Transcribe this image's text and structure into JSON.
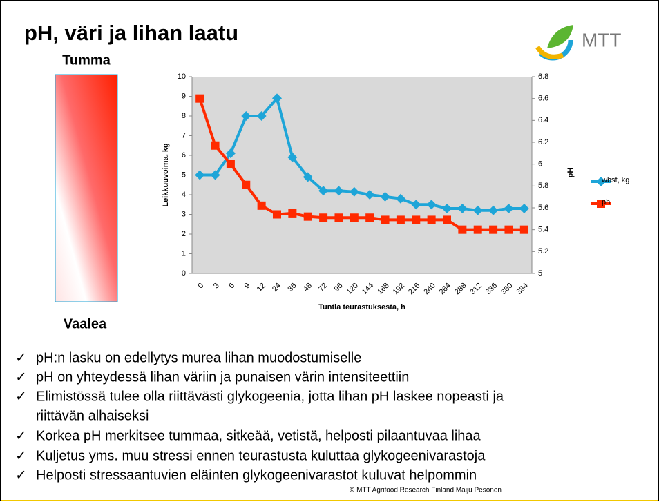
{
  "header": {
    "title": "pH, väri ja lihan laatu",
    "logo": "MTT"
  },
  "scale_labels": {
    "top": "Tumma",
    "bottom": "Vaalea"
  },
  "chart_data": {
    "type": "line",
    "xlabel": "Tuntia teurastuksesta, h",
    "ylabel": "Leikkuuvoima, kg",
    "y2label": "pH",
    "categories": [
      "0",
      "3",
      "6",
      "9",
      "12",
      "24",
      "36",
      "48",
      "72",
      "96",
      "120",
      "144",
      "168",
      "192",
      "216",
      "240",
      "264",
      "288",
      "312",
      "336",
      "360",
      "384"
    ],
    "series": [
      {
        "name": "wbsf, kg",
        "color": "#1ea5d8",
        "marker": "diamond",
        "values": [
          5,
          5,
          6.1,
          8,
          8,
          8.9,
          5.9,
          4.9,
          4.2,
          4.2,
          4.15,
          4.0,
          3.9,
          3.8,
          3.5,
          3.5,
          3.3,
          3.3,
          3.2,
          3.2,
          3.3,
          3.3
        ]
      },
      {
        "name": "ph",
        "color": "#ff2a00",
        "marker": "square",
        "axis": "y2",
        "values": [
          6.6,
          6.17,
          6.0,
          5.81,
          5.62,
          5.54,
          5.55,
          5.52,
          5.51,
          5.51,
          5.51,
          5.51,
          5.49,
          5.49,
          5.49,
          5.49,
          5.49,
          5.4,
          5.4,
          5.4,
          5.4,
          5.4
        ]
      }
    ],
    "ylim": [
      0,
      10
    ],
    "yticks": [
      0,
      1,
      2,
      3,
      4,
      5,
      6,
      7,
      8,
      9,
      10
    ],
    "y2lim": [
      5,
      6.8
    ],
    "y2ticks": [
      5,
      5.2,
      5.4,
      5.6,
      5.8,
      6,
      6.2,
      6.4,
      6.6,
      6.8
    ],
    "grid": false,
    "legend": "right"
  },
  "bullets": [
    "pH:n lasku on edellytys murea lihan muodostumiselle",
    "pH on yhteydessä lihan väriin ja punaisen värin intensiteettiin",
    "Elimistössä tulee olla riittävästi glykogeenia, jotta lihan pH laskee nopeasti ja",
    "riittävän alhaiseksi",
    "Korkea pH merkitsee tummaa, sitkeää, vetistä, helposti pilaantuvaa lihaa",
    "Kuljetus yms. muu stressi ennen teurastusta kuluttaa glykogeenivarastoja",
    "Helposti stressaantuvien eläinten glykogeenivarastot kuluvat helpommin"
  ],
  "footer": "© MTT Agrifood Research Finland Maiju Pesonen"
}
